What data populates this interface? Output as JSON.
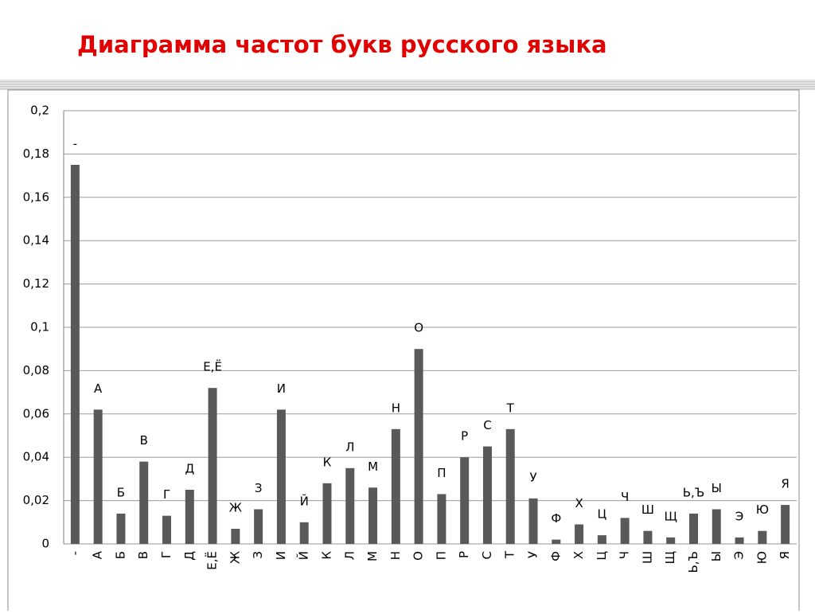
{
  "chart_data": {
    "type": "bar",
    "title": "Диаграмма частот букв русского языка",
    "categories": [
      "-",
      "А",
      "Б",
      "В",
      "Г",
      "Д",
      "Е,Ё",
      "Ж",
      "З",
      "И",
      "Й",
      "К",
      "Л",
      "М",
      "Н",
      "О",
      "П",
      "Р",
      "С",
      "Т",
      "У",
      "Ф",
      "Х",
      "Ц",
      "Ч",
      "Ш",
      "Щ",
      "Ь,Ъ",
      "Ы",
      "Э",
      "Ю",
      "Я"
    ],
    "values": [
      0.175,
      0.062,
      0.014,
      0.038,
      0.013,
      0.025,
      0.072,
      0.007,
      0.016,
      0.062,
      0.01,
      0.028,
      0.035,
      0.026,
      0.053,
      0.09,
      0.023,
      0.04,
      0.045,
      0.053,
      0.021,
      0.002,
      0.009,
      0.004,
      0.012,
      0.006,
      0.003,
      0.014,
      0.016,
      0.003,
      0.006,
      0.018
    ],
    "color": "#595959",
    "ylim": [
      0,
      0.2
    ],
    "yticks": [
      0,
      {
        "value": 0.02,
        "label": "0,02"
      },
      {
        "value": 0.04,
        "label": "0,04"
      },
      {
        "value": 0.06,
        "label": "0,06"
      },
      {
        "value": 0.08,
        "label": "0,08"
      },
      {
        "value": 0.1,
        "label": "0,1"
      },
      {
        "value": 0.12,
        "label": "0,12"
      },
      {
        "value": 0.14,
        "label": "0,14"
      },
      {
        "value": 0.16,
        "label": "0,16"
      },
      {
        "value": 0.18,
        "label": "0,18"
      },
      {
        "value": 0.2,
        "label": "0,2"
      }
    ],
    "grid": true
  }
}
